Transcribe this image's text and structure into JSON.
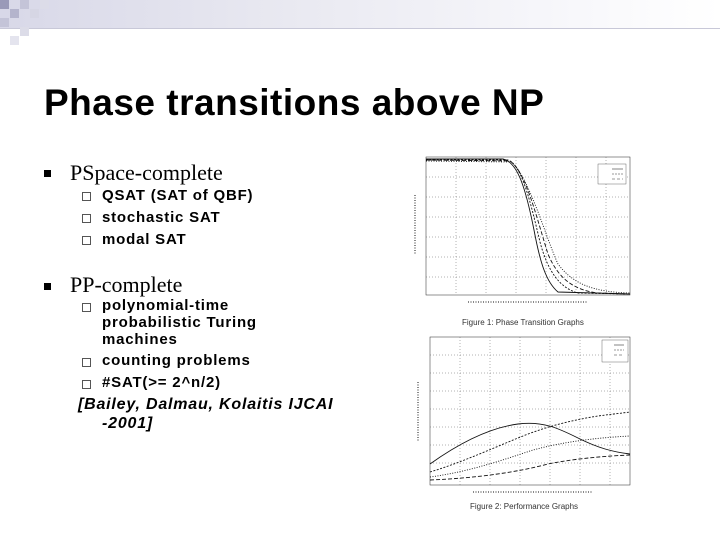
{
  "slide": {
    "title": "Phase transitions above NP",
    "bullets": [
      {
        "text": "PSpace-complete",
        "subitems": [
          "QSAT (SAT of QBF)",
          "stochastic SAT",
          "modal SAT"
        ]
      },
      {
        "text": "PP-complete",
        "subitems": [
          [
            "polynomial-time",
            "probabilistic Turing",
            "machines"
          ],
          "counting problems",
          "#SAT(>= 2^n/2)"
        ]
      }
    ],
    "citation": [
      "[Bailey, Dalmau, Kolaitis IJCAI",
      "-2001]"
    ]
  },
  "figures": {
    "fig1_caption": "Figure 1: Phase Transition Graphs",
    "fig2_caption": "Figure 2: Performance Graphs"
  },
  "colors": {
    "accent": "#d8d8e8",
    "text": "#000000"
  }
}
